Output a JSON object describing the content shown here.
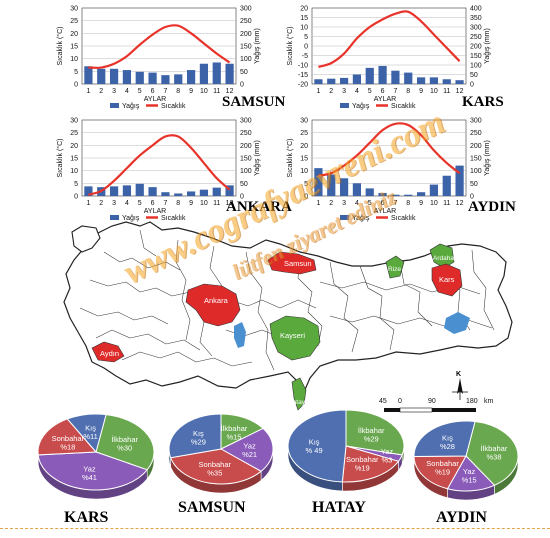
{
  "colors": {
    "precip_bar": "#3c63a8",
    "temp_line": "#e8332a",
    "region_green": "#5aa93c",
    "region_red": "#df2a2a",
    "lake_blue": "#4a8fd0",
    "pie_blue": "#4f6fb0",
    "pie_green": "#6aa84f",
    "pie_red": "#c94c4c",
    "pie_purple": "#8a5bb8"
  },
  "legend": {
    "precip": "Yağış",
    "temp": "Sıcaklık"
  },
  "chart_data": [
    {
      "type": "bar+line",
      "city": "SAMSUN",
      "title": "",
      "xlabel": "AYLAR",
      "ylabel_left": "Sıcaklık (°C)",
      "ylabel_right": "Yağış (mm)",
      "categories": [
        "1",
        "2",
        "3",
        "4",
        "5",
        "6",
        "7",
        "8",
        "9",
        "10",
        "11",
        "12"
      ],
      "ylim_left": [
        0,
        30
      ],
      "ylim_right": [
        0,
        300
      ],
      "yticks_left": [
        "0",
        "5",
        "10",
        "15",
        "20",
        "25",
        "30"
      ],
      "yticks_right": [
        "0",
        "50",
        "100",
        "150",
        "200",
        "250",
        "300"
      ],
      "series": [
        {
          "name": "Yağış",
          "axis": "right",
          "values": [
            70,
            60,
            60,
            55,
            48,
            45,
            35,
            38,
            55,
            80,
            85,
            80
          ]
        },
        {
          "name": "Sıcaklık",
          "axis": "left",
          "values": [
            6.5,
            6.5,
            8,
            11,
            15.5,
            19.5,
            22.5,
            23,
            20,
            16,
            12,
            8.5
          ]
        }
      ]
    },
    {
      "type": "bar+line",
      "city": "KARS",
      "title": "",
      "xlabel": "AYLAR",
      "ylabel_left": "Sıcaklık (°C)",
      "ylabel_right": "Yağış (mm)",
      "categories": [
        "1",
        "2",
        "3",
        "4",
        "5",
        "6",
        "7",
        "8",
        "9",
        "10",
        "11",
        "12"
      ],
      "ylim_left": [
        -20,
        20
      ],
      "ylim_right": [
        0,
        400
      ],
      "yticks_left": [
        "-20",
        "-15",
        "-10",
        "-5",
        "0",
        "5",
        "10",
        "15",
        "20"
      ],
      "yticks_right": [
        "0",
        "50",
        "100",
        "150",
        "200",
        "250",
        "300",
        "350",
        "400"
      ],
      "series": [
        {
          "name": "Yağış",
          "axis": "right",
          "values": [
            25,
            28,
            32,
            50,
            85,
            95,
            70,
            60,
            35,
            35,
            25,
            20
          ]
        },
        {
          "name": "Sıcaklık",
          "axis": "left",
          "values": [
            -11,
            -9,
            -4,
            4,
            10,
            14,
            17,
            18,
            13,
            6,
            -1,
            -8
          ]
        }
      ]
    },
    {
      "type": "bar+line",
      "city": "ANKARA",
      "title": "",
      "xlabel": "AYLAR",
      "ylabel_left": "Sıcaklık (°C)",
      "ylabel_right": "Yağış (mm)",
      "categories": [
        "1",
        "2",
        "3",
        "4",
        "5",
        "6",
        "7",
        "8",
        "9",
        "10",
        "11",
        "12"
      ],
      "ylim_left": [
        0,
        30
      ],
      "ylim_right": [
        0,
        300
      ],
      "yticks_left": [
        "0",
        "5",
        "10",
        "15",
        "20",
        "25",
        "30"
      ],
      "yticks_right": [
        "0",
        "50",
        "100",
        "150",
        "200",
        "250",
        "300"
      ],
      "series": [
        {
          "name": "Yağış",
          "axis": "right",
          "values": [
            38,
            35,
            38,
            42,
            48,
            35,
            15,
            10,
            18,
            25,
            33,
            42
          ]
        },
        {
          "name": "Sıcaklık",
          "axis": "left",
          "values": [
            0.5,
            2,
            6,
            11,
            16,
            20,
            23.5,
            23.5,
            19,
            13,
            7,
            2.5
          ]
        }
      ]
    },
    {
      "type": "bar+line",
      "city": "AYDIN",
      "title": "",
      "xlabel": "AYLAR",
      "ylabel_left": "Sıcaklık (°C)",
      "ylabel_right": "Yağış (mm)",
      "categories": [
        "1",
        "2",
        "3",
        "4",
        "5",
        "6",
        "7",
        "8",
        "9",
        "10",
        "11",
        "12"
      ],
      "ylim_left": [
        0,
        30
      ],
      "ylim_right": [
        0,
        300
      ],
      "yticks_left": [
        "0",
        "5",
        "10",
        "15",
        "20",
        "25",
        "30"
      ],
      "yticks_right": [
        "0",
        "50",
        "100",
        "150",
        "200",
        "250",
        "300"
      ],
      "series": [
        {
          "name": "Yağış",
          "axis": "right",
          "values": [
            110,
            85,
            70,
            50,
            30,
            12,
            5,
            5,
            15,
            45,
            80,
            120
          ]
        },
        {
          "name": "Sıcaklık",
          "axis": "left",
          "values": [
            8,
            9,
            12,
            16,
            21,
            26,
            28.5,
            28,
            24,
            18,
            13,
            9
          ]
        }
      ]
    },
    {
      "type": "pie",
      "city": "KARS",
      "slices": [
        {
          "label": "İlkbahar",
          "value": 30,
          "text": "%30",
          "color": "#6aa84f"
        },
        {
          "label": "Yaz",
          "value": 41,
          "text": "%41",
          "color": "#8a5bb8"
        },
        {
          "label": "Sonbahar",
          "value": 18,
          "text": "%18",
          "color": "#c94c4c"
        },
        {
          "label": "Kış",
          "value": 11,
          "text": "%11",
          "color": "#4f6fb0"
        }
      ]
    },
    {
      "type": "pie",
      "city": "SAMSUN",
      "slices": [
        {
          "label": "İlkbahar",
          "value": 15,
          "text": "%15",
          "color": "#6aa84f"
        },
        {
          "label": "Yaz",
          "value": 21,
          "text": "%21",
          "color": "#8a5bb8"
        },
        {
          "label": "Sonbahar",
          "value": 35,
          "text": "%35",
          "color": "#c94c4c"
        },
        {
          "label": "Kış",
          "value": 29,
          "text": "%29",
          "color": "#4f6fb0"
        }
      ]
    },
    {
      "type": "pie",
      "city": "HATAY",
      "slices": [
        {
          "label": "İlkbahar",
          "value": 29,
          "text": "%29",
          "color": "#6aa84f"
        },
        {
          "label": "Yaz",
          "value": 3,
          "text": "%3",
          "color": "#8a5bb8"
        },
        {
          "label": "Sonbahar",
          "value": 19,
          "text": "%19",
          "color": "#c94c4c"
        },
        {
          "label": "Kış",
          "value": 49,
          "text": "% 49",
          "color": "#4f6fb0"
        }
      ]
    },
    {
      "type": "pie",
      "city": "AYDIN",
      "slices": [
        {
          "label": "İlkbahar",
          "value": 38,
          "text": "%38",
          "color": "#6aa84f"
        },
        {
          "label": "Yaz",
          "value": 15,
          "text": "%15",
          "color": "#8a5bb8"
        },
        {
          "label": "Sonbahar",
          "value": 19,
          "text": "%19",
          "color": "#c94c4c"
        },
        {
          "label": "Kış",
          "value": 28,
          "text": "%28",
          "color": "#4f6fb0"
        }
      ]
    }
  ],
  "map": {
    "scale_ticks": [
      "45",
      "0",
      "90",
      "180"
    ],
    "scale_unit": "km",
    "north_label": "K",
    "labels": {
      "samsun": "Samsun",
      "ankara": "Ankara",
      "kayseri": "Kayseri",
      "aydin": "Aydın",
      "hatay": "Hatay",
      "kars": "Kars",
      "ardahan": "Ardahan",
      "rize": "Rize"
    }
  },
  "watermark": {
    "text1": "www.cografyaevreni.com",
    "text2": "lütfen ziyaret ediniz"
  }
}
